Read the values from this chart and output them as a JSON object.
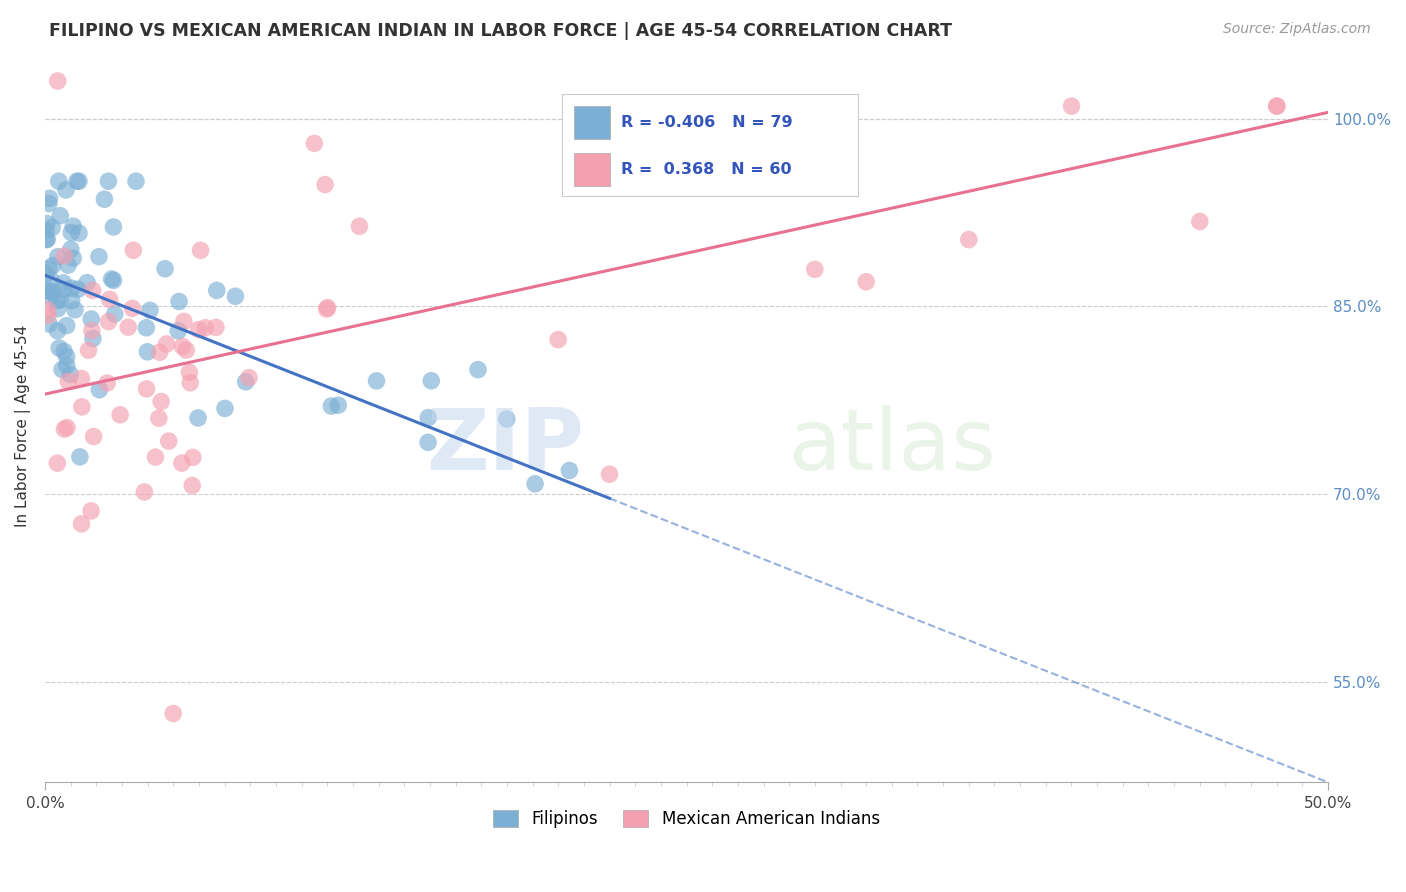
{
  "title": "FILIPINO VS MEXICAN AMERICAN INDIAN IN LABOR FORCE | AGE 45-54 CORRELATION CHART",
  "source": "Source: ZipAtlas.com",
  "ylabel": "In Labor Force | Age 45-54",
  "xlim": [
    0.0,
    50.0
  ],
  "ylim": [
    47.0,
    104.0
  ],
  "yticks_show": [
    55.0,
    70.0,
    85.0,
    100.0
  ],
  "ytick_labels_show": [
    "55.0%",
    "70.0%",
    "85.0%",
    "100.0%"
  ],
  "grid_color": "#cccccc",
  "background_color": "#ffffff",
  "blue_color": "#7bafd4",
  "pink_color": "#f4a0b0",
  "blue_line_color": "#4472c4",
  "pink_line_color": "#e87090",
  "blue_R": -0.406,
  "blue_N": 79,
  "pink_R": 0.368,
  "pink_N": 60,
  "watermark_zip": "ZIP",
  "watermark_atlas": "atlas",
  "legend_blue_label": "Filipinos",
  "legend_pink_label": "Mexican American Indians",
  "blue_trend_x0": 0.0,
  "blue_trend_y0": 87.5,
  "blue_trend_x1": 50.0,
  "blue_trend_y1": 47.0,
  "blue_solid_end_x": 22.0,
  "pink_trend_x0": 0.0,
  "pink_trend_y0": 78.0,
  "pink_trend_x1": 50.0,
  "pink_trend_y1": 100.5
}
